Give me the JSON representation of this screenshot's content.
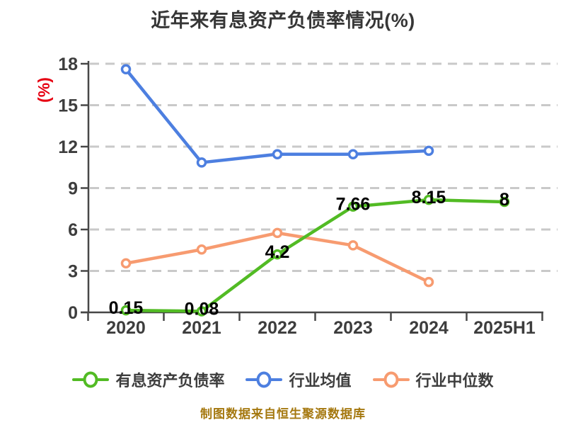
{
  "chart_data": {
    "type": "line",
    "title": "近年来有息资产负债率情况(%)",
    "ylabel": "(%)",
    "xlabel": "",
    "categories": [
      "2020",
      "2021",
      "2022",
      "2023",
      "2024",
      "2025H1"
    ],
    "series": [
      {
        "name": "有息资产负债率",
        "color": "#52bb24",
        "values": [
          0.15,
          0.08,
          4.2,
          7.66,
          8.15,
          8
        ],
        "point_labels": [
          "0.15",
          "0.08",
          "4.2",
          "7.66",
          "8.15",
          "8"
        ]
      },
      {
        "name": "行业均值",
        "color": "#4d7fe0",
        "values": [
          17.6,
          10.85,
          11.45,
          11.45,
          11.7,
          null
        ],
        "point_labels": null
      },
      {
        "name": "行业中位数",
        "color": "#f79b70",
        "values": [
          3.55,
          4.55,
          5.75,
          4.85,
          2.2,
          null
        ],
        "point_labels": null
      }
    ],
    "ylim": [
      0,
      18
    ],
    "yticks": [
      0,
      3,
      6,
      9,
      12,
      15,
      18
    ],
    "grid": "horizontal-dashed",
    "legend_position": "bottom",
    "marker_style": "circle-white-fill",
    "colors": {
      "grid": "#c9c9c9",
      "axis": "#474747",
      "tick_label": "#3d3d3d",
      "data_label": "#000000",
      "title": "#363636",
      "ylabel": "#e60012"
    }
  },
  "footer": {
    "text": "制图数据来自恒生聚源数据库",
    "color": "#a5780f"
  }
}
